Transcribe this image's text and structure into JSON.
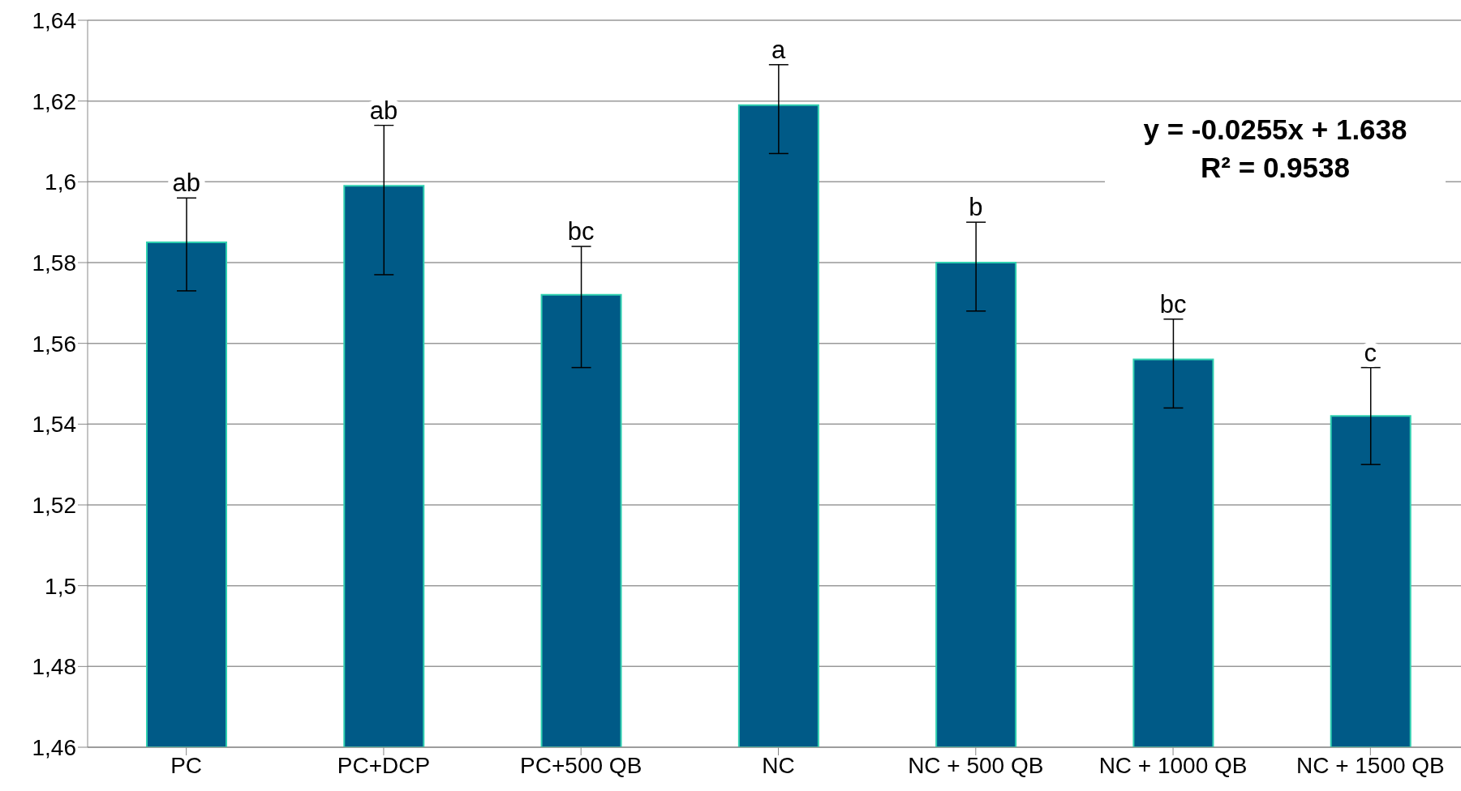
{
  "chart_data": {
    "type": "bar",
    "categories": [
      "PC",
      "PC+DCP",
      "PC+500 QB",
      "NC",
      "NC + 500 QB",
      "NC + 1000 QB",
      "NC + 1500 QB"
    ],
    "values": [
      1.585,
      1.599,
      1.572,
      1.619,
      1.58,
      1.556,
      1.542
    ],
    "errors": [
      [
        1.573,
        1.596
      ],
      [
        1.577,
        1.614
      ],
      [
        1.554,
        1.584
      ],
      [
        1.607,
        1.629
      ],
      [
        1.568,
        1.59
      ],
      [
        1.544,
        1.566
      ],
      [
        1.53,
        1.554
      ]
    ],
    "color": "#005a87",
    "ylim": [
      1.46,
      1.64
    ],
    "yticks": [
      {
        "value": 1.46,
        "label": "1,46"
      },
      {
        "value": 1.48,
        "label": "1,48"
      },
      {
        "value": 1.5,
        "label": "1,5"
      },
      {
        "value": 1.52,
        "label": "1,52"
      },
      {
        "value": 1.54,
        "label": "1,54"
      },
      {
        "value": 1.56,
        "label": "1,56"
      },
      {
        "value": 1.58,
        "label": "1,58"
      },
      {
        "value": 1.6,
        "label": "1,6"
      },
      {
        "value": 1.62,
        "label": "1,62"
      },
      {
        "value": 1.64,
        "label": "1,64"
      }
    ],
    "grid": "y",
    "value_labels": [
      "ab",
      "ab",
      "bc",
      "a",
      "b",
      "bc",
      "c"
    ],
    "annotations": [
      "y = -0.0255x + 1.638\nR² = 0.9538"
    ]
  }
}
